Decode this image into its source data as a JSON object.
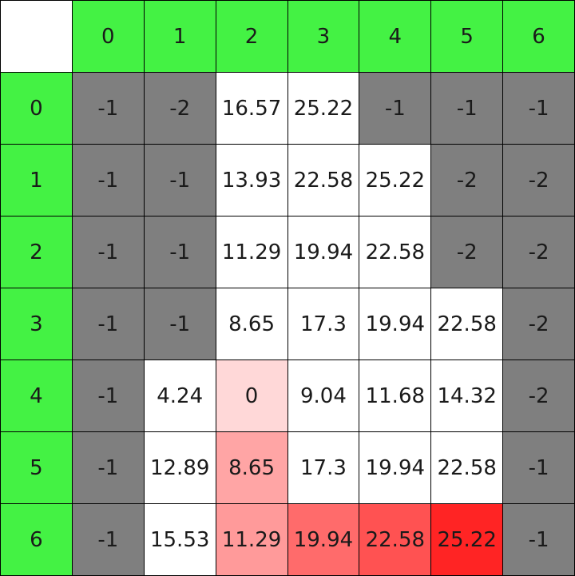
{
  "colors": {
    "header": "#44f244",
    "wall": "#7f7f7f",
    "open": "#ffffff",
    "path_light": "#ffd8d8",
    "path_medium": "#ff9a9a",
    "path_strong": "#ff6b6b",
    "path_max": "#ff2424"
  },
  "columns": [
    "0",
    "1",
    "2",
    "3",
    "4",
    "5",
    "6"
  ],
  "rows": [
    {
      "label": "0",
      "cells": [
        {
          "value": "-1",
          "kind": "wall"
        },
        {
          "value": "-2",
          "kind": "wall"
        },
        {
          "value": "16.57",
          "kind": "open"
        },
        {
          "value": "25.22",
          "kind": "open"
        },
        {
          "value": "-1",
          "kind": "wall"
        },
        {
          "value": "-1",
          "kind": "wall"
        },
        {
          "value": "-1",
          "kind": "wall"
        }
      ]
    },
    {
      "label": "1",
      "cells": [
        {
          "value": "-1",
          "kind": "wall"
        },
        {
          "value": "-1",
          "kind": "wall"
        },
        {
          "value": "13.93",
          "kind": "open"
        },
        {
          "value": "22.58",
          "kind": "open"
        },
        {
          "value": "25.22",
          "kind": "open"
        },
        {
          "value": "-2",
          "kind": "wall"
        },
        {
          "value": "-2",
          "kind": "wall"
        }
      ]
    },
    {
      "label": "2",
      "cells": [
        {
          "value": "-1",
          "kind": "wall"
        },
        {
          "value": "-1",
          "kind": "wall"
        },
        {
          "value": "11.29",
          "kind": "open"
        },
        {
          "value": "19.94",
          "kind": "open"
        },
        {
          "value": "22.58",
          "kind": "open"
        },
        {
          "value": "-2",
          "kind": "wall"
        },
        {
          "value": "-2",
          "kind": "wall"
        }
      ]
    },
    {
      "label": "3",
      "cells": [
        {
          "value": "-1",
          "kind": "wall"
        },
        {
          "value": "-1",
          "kind": "wall"
        },
        {
          "value": "8.65",
          "kind": "open"
        },
        {
          "value": "17.3",
          "kind": "open"
        },
        {
          "value": "19.94",
          "kind": "open"
        },
        {
          "value": "22.58",
          "kind": "open"
        },
        {
          "value": "-2",
          "kind": "wall"
        }
      ]
    },
    {
      "label": "4",
      "cells": [
        {
          "value": "-1",
          "kind": "wall"
        },
        {
          "value": "4.24",
          "kind": "open"
        },
        {
          "value": "0",
          "kind": "path",
          "color": "#ffd8d8"
        },
        {
          "value": "9.04",
          "kind": "open"
        },
        {
          "value": "11.68",
          "kind": "open"
        },
        {
          "value": "14.32",
          "kind": "open"
        },
        {
          "value": "-2",
          "kind": "wall"
        }
      ]
    },
    {
      "label": "5",
      "cells": [
        {
          "value": "-1",
          "kind": "wall"
        },
        {
          "value": "12.89",
          "kind": "open"
        },
        {
          "value": "8.65",
          "kind": "path",
          "color": "#ffa5a5"
        },
        {
          "value": "17.3",
          "kind": "open"
        },
        {
          "value": "19.94",
          "kind": "open"
        },
        {
          "value": "22.58",
          "kind": "open"
        },
        {
          "value": "-1",
          "kind": "wall"
        }
      ]
    },
    {
      "label": "6",
      "cells": [
        {
          "value": "-1",
          "kind": "wall"
        },
        {
          "value": "15.53",
          "kind": "open"
        },
        {
          "value": "11.29",
          "kind": "path",
          "color": "#ff9a9a"
        },
        {
          "value": "19.94",
          "kind": "path",
          "color": "#ff6b6b"
        },
        {
          "value": "22.58",
          "kind": "path",
          "color": "#ff5252"
        },
        {
          "value": "25.22",
          "kind": "path",
          "color": "#ff2424"
        },
        {
          "value": "-1",
          "kind": "wall"
        }
      ]
    }
  ]
}
